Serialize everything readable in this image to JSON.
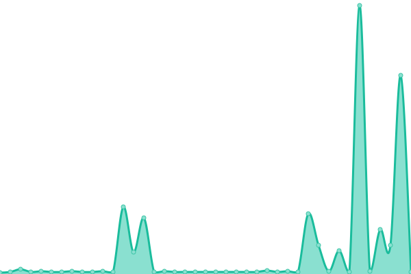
{
  "chart_data": {
    "type": "area",
    "smooth": true,
    "markers": true,
    "grid": false,
    "axes_visible": false,
    "x": [
      0,
      1,
      2,
      3,
      4,
      5,
      6,
      7,
      8,
      9,
      10,
      11,
      12,
      13,
      14,
      15,
      16,
      17,
      18,
      19,
      20,
      21,
      22,
      23,
      24,
      25,
      26,
      27,
      28,
      29,
      30,
      31,
      32,
      33,
      34,
      35,
      36,
      37,
      38,
      39,
      40
    ],
    "series": [
      {
        "values": [
          0,
          1,
          5,
          1,
          2,
          1,
          1,
          2,
          1,
          1,
          2,
          1,
          96,
          30,
          80,
          1,
          2,
          1,
          1,
          1,
          1,
          1,
          1,
          1,
          1,
          1,
          3,
          1,
          2,
          1,
          86,
          40,
          2,
          32,
          1,
          390,
          2,
          63,
          40,
          288,
          1
        ]
      }
    ],
    "ylim": [
      0,
      398
    ],
    "colors": {
      "line": "#1abc9c",
      "fill": "#8ae0d0",
      "marker_fill": "#8ae0d0",
      "marker_stroke": "#3cc4a6"
    }
  }
}
